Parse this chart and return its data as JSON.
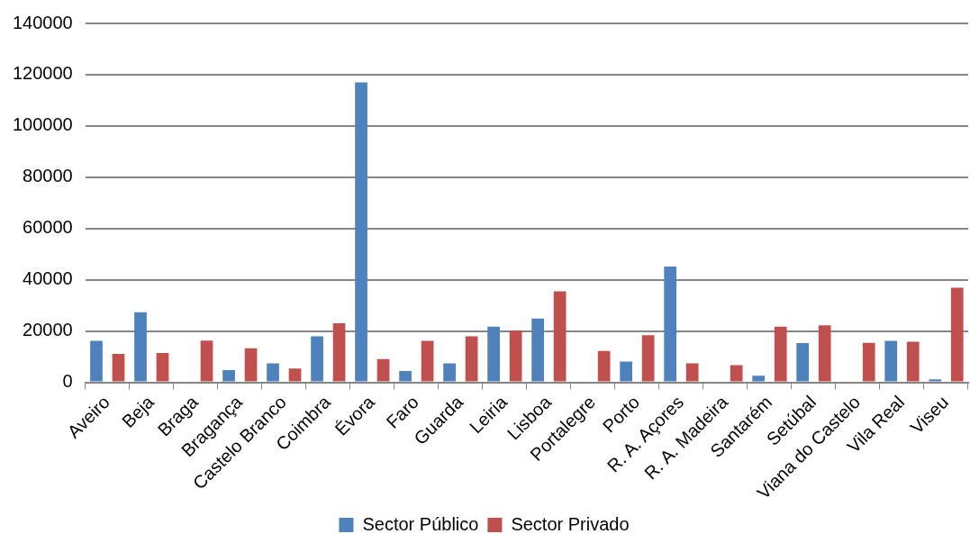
{
  "chart_data": {
    "type": "bar",
    "categories": [
      "Aveiro",
      "Beja",
      "Braga",
      "Bragança",
      "Castelo Branco",
      "Coimbra",
      "Évora",
      "Faro",
      "Guarda",
      "Leiria",
      "Lisboa",
      "Portalegre",
      "Porto",
      "R. A. Açores",
      "R. A. Madeira",
      "Santarém",
      "Setúbal",
      "Viana do Castelo",
      "Vila Real",
      "Viseu"
    ],
    "series": [
      {
        "name": "Sector Público",
        "color": "#4f81bd",
        "values": [
          16200,
          27300,
          0,
          4800,
          7400,
          17900,
          117000,
          4400,
          7400,
          21700,
          24900,
          0,
          8100,
          45200,
          0,
          2600,
          15300,
          0,
          16200,
          1200
        ]
      },
      {
        "name": "Sector Privado",
        "color": "#c0504d",
        "values": [
          11100,
          11400,
          16300,
          13300,
          5400,
          23000,
          9100,
          16200,
          17900,
          20200,
          35500,
          12200,
          18400,
          7400,
          6700,
          21700,
          22200,
          15400,
          15800,
          36900
        ]
      }
    ],
    "ylim": [
      0,
      140000
    ],
    "yticks": [
      0,
      20000,
      40000,
      60000,
      80000,
      100000,
      120000,
      140000
    ],
    "grid": "y",
    "legend": "bottom"
  }
}
